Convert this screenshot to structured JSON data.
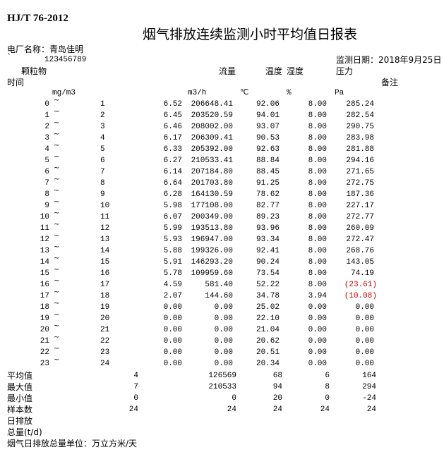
{
  "header": {
    "standard": "HJ/T 76-2012",
    "title": "烟气排放连续监测小时平均值日报表",
    "plant_label": "电厂名称：青岛佳明",
    "backtick": "`",
    "code": "123456789",
    "date_label": "监测日期：2018年9月25日"
  },
  "columns": {
    "particulate": "颗粒物",
    "flow": "流量",
    "temperature": "温度",
    "humidity": "湿度",
    "pressure": "压力",
    "time": "时间",
    "remark": "备注",
    "units": {
      "particulate": "mg/m3",
      "flow": "m3/h",
      "temperature": "℃",
      "humidity": "%",
      "pressure": "Pa"
    }
  },
  "tilde": "~",
  "rows": [
    [
      "0",
      "1",
      "6.52",
      "206648.41",
      "92.06",
      "8.00",
      "285.24"
    ],
    [
      "1",
      "2",
      "6.45",
      "203520.59",
      "94.01",
      "8.00",
      "282.54"
    ],
    [
      "2",
      "3",
      "6.46",
      "208002.00",
      "93.07",
      "8.00",
      "290.75"
    ],
    [
      "3",
      "4",
      "6.17",
      "206309.41",
      "90.53",
      "8.00",
      "283.98"
    ],
    [
      "4",
      "5",
      "6.33",
      "205392.00",
      "92.63",
      "8.00",
      "281.88"
    ],
    [
      "5",
      "6",
      "6.27",
      "210533.41",
      "88.84",
      "8.00",
      "294.16"
    ],
    [
      "6",
      "7",
      "6.14",
      "207184.80",
      "88.45",
      "8.00",
      "271.65"
    ],
    [
      "7",
      "8",
      "6.64",
      "201703.80",
      "91.25",
      "8.00",
      "272.75"
    ],
    [
      "8",
      "9",
      "6.28",
      "164130.59",
      "78.62",
      "8.00",
      "187.36"
    ],
    [
      "9",
      "10",
      "5.98",
      "177108.00",
      "82.77",
      "8.00",
      "227.17"
    ],
    [
      "10",
      "11",
      "6.07",
      "200349.00",
      "89.23",
      "8.00",
      "272.77"
    ],
    [
      "11",
      "12",
      "5.99",
      "193513.80",
      "93.96",
      "8.00",
      "260.09"
    ],
    [
      "12",
      "13",
      "5.93",
      "196947.00",
      "93.34",
      "8.00",
      "272.47"
    ],
    [
      "13",
      "14",
      "5.88",
      "199326.00",
      "92.41",
      "8.00",
      "268.76"
    ],
    [
      "14",
      "15",
      "5.91",
      "146293.20",
      "90.24",
      "8.00",
      "143.05"
    ],
    [
      "15",
      "16",
      "5.78",
      "109959.60",
      "73.54",
      "8.00",
      "74.19"
    ],
    [
      "16",
      "17",
      "4.59",
      "581.40",
      "52.22",
      "8.00",
      "(23.61)"
    ],
    [
      "17",
      "18",
      "2.07",
      "144.60",
      "34.78",
      "3.94",
      "(10.08)"
    ],
    [
      "18",
      "19",
      "0.00",
      "0.00",
      "25.02",
      "0.00",
      "0.00"
    ],
    [
      "19",
      "20",
      "0.00",
      "0.00",
      "22.10",
      "0.00",
      "0.00"
    ],
    [
      "20",
      "21",
      "0.00",
      "0.00",
      "21.04",
      "0.00",
      "0.00"
    ],
    [
      "21",
      "22",
      "0.00",
      "0.00",
      "20.62",
      "0.00",
      "0.00"
    ],
    [
      "22",
      "23",
      "0.00",
      "0.00",
      "20.51",
      "0.00",
      "0.00"
    ],
    [
      "23",
      "24",
      "0.00",
      "0.00",
      "20.34",
      "0.00",
      "0.00"
    ]
  ],
  "summary": [
    {
      "label": "平均值",
      "values": [
        "4",
        "126569",
        "68",
        "6",
        "164"
      ]
    },
    {
      "label": "最大值",
      "values": [
        "7",
        "210533",
        "94",
        "8",
        "294"
      ]
    },
    {
      "label": "最小值",
      "values": [
        "0",
        "0",
        "20",
        "0",
        "-24"
      ]
    },
    {
      "label": "样本数",
      "values": [
        "24",
        "24",
        "24",
        "24",
        "24"
      ]
    }
  ],
  "footer": {
    "daily_emission": "日排放",
    "total": "总量(t/d)",
    "unit_note": "烟气日排放总量单位：万立方米/天"
  },
  "colors": {
    "negative": "#d00000"
  }
}
